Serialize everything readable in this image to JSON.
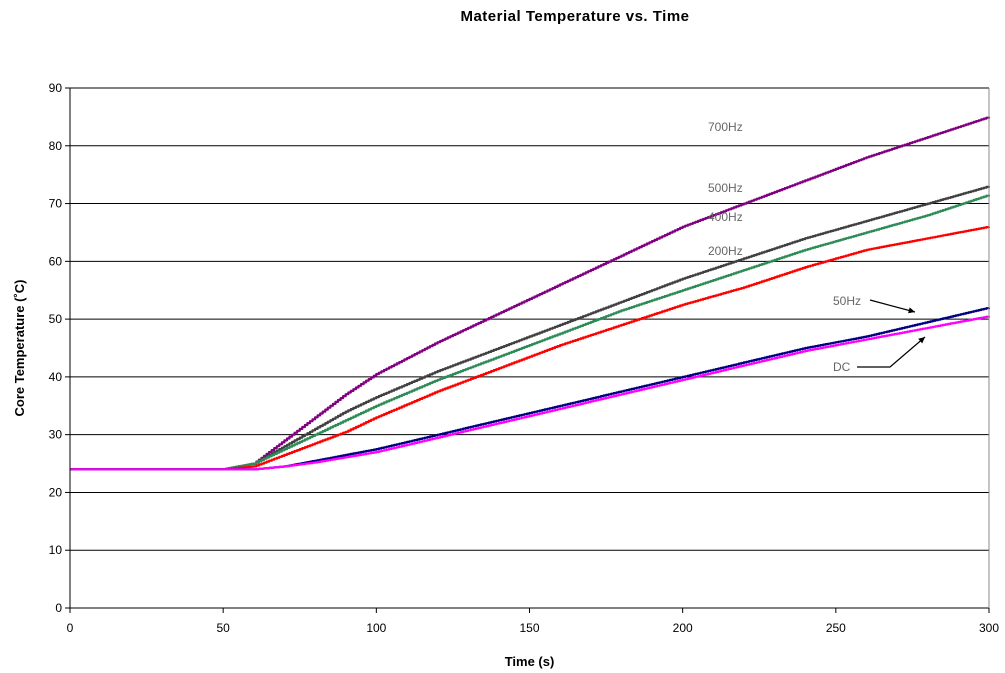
{
  "chart_data": {
    "type": "line",
    "title": "Material Temperature vs. Time",
    "xlabel": "Time (s)",
    "ylabel": "Core Temperature (˚C)",
    "xlim": [
      0,
      300
    ],
    "ylim": [
      0,
      90
    ],
    "x_ticks": [
      "0",
      "50",
      "100",
      "150",
      "200",
      "250",
      "300"
    ],
    "y_ticks": [
      "0",
      "10",
      "20",
      "30",
      "40",
      "50",
      "60",
      "70",
      "80",
      "90"
    ],
    "grid": "horizontal",
    "legend": "inline annotations",
    "series": [
      {
        "name": "700Hz",
        "color": "#800080",
        "x": [
          0,
          50,
          60,
          70,
          80,
          90,
          100,
          120,
          140,
          160,
          180,
          200,
          220,
          240,
          260,
          280,
          300
        ],
        "y": [
          24,
          24,
          25,
          29,
          33,
          37,
          40.5,
          46,
          51,
          56,
          61,
          66,
          70,
          74,
          78,
          81.5,
          85
        ]
      },
      {
        "name": "500Hz",
        "color": "#404040",
        "x": [
          0,
          50,
          60,
          70,
          80,
          90,
          100,
          120,
          140,
          160,
          180,
          200,
          220,
          240,
          260,
          280,
          300
        ],
        "y": [
          24,
          24,
          25,
          28,
          31,
          34,
          36.5,
          41,
          45,
          49,
          53,
          57,
          60.5,
          64,
          67,
          70,
          73
        ]
      },
      {
        "name": "400Hz",
        "color": "#2E8B57",
        "x": [
          0,
          50,
          60,
          70,
          80,
          90,
          100,
          120,
          140,
          160,
          180,
          200,
          220,
          240,
          260,
          280,
          300
        ],
        "y": [
          24,
          24,
          25,
          27.5,
          30,
          32.5,
          35,
          39.5,
          43.5,
          47.5,
          51.5,
          55,
          58.5,
          62,
          65,
          68,
          71.5
        ]
      },
      {
        "name": "200Hz",
        "color": "#FF0000",
        "x": [
          0,
          50,
          60,
          70,
          80,
          90,
          100,
          120,
          140,
          160,
          180,
          200,
          220,
          240,
          260,
          280,
          300
        ],
        "y": [
          24,
          24,
          24.5,
          26.5,
          28.5,
          30.5,
          33,
          37.5,
          41.5,
          45.5,
          49,
          52.5,
          55.5,
          59,
          62,
          64,
          66
        ]
      },
      {
        "name": "50Hz",
        "color": "#000080",
        "x": [
          0,
          50,
          60,
          70,
          80,
          100,
          120,
          140,
          160,
          180,
          200,
          220,
          240,
          260,
          280,
          300
        ],
        "y": [
          24,
          24,
          24,
          24.5,
          25.5,
          27.5,
          30,
          32.5,
          35,
          37.5,
          40,
          42.5,
          45,
          47,
          49.5,
          52
        ]
      },
      {
        "name": "DC",
        "color": "#FF00FF",
        "x": [
          0,
          50,
          60,
          70,
          80,
          100,
          120,
          140,
          160,
          180,
          200,
          220,
          240,
          260,
          280,
          300
        ],
        "y": [
          24,
          24,
          24,
          24.5,
          25.2,
          27,
          29.5,
          32,
          34.5,
          37,
          39.5,
          42,
          44.5,
          46.5,
          48.5,
          50.5
        ]
      }
    ],
    "annotations": [
      {
        "text": "700Hz",
        "series": "700Hz"
      },
      {
        "text": "500Hz",
        "series": "500Hz"
      },
      {
        "text": "400Hz",
        "series": "400Hz"
      },
      {
        "text": "200Hz",
        "series": "200Hz"
      },
      {
        "text": "50Hz",
        "series": "50Hz"
      },
      {
        "text": "DC",
        "series": "DC"
      }
    ]
  }
}
